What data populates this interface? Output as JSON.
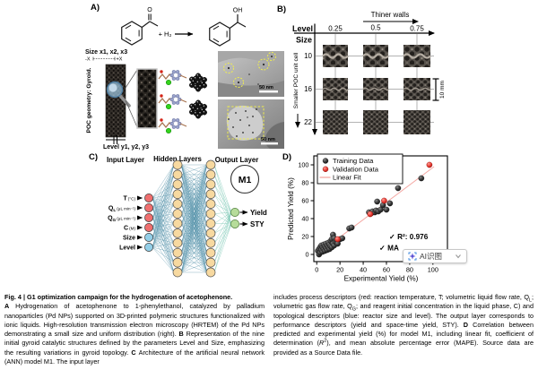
{
  "figure": {
    "panelA": {
      "label": "A)",
      "reaction": {
        "o_label": "O",
        "oh_label": "OH",
        "plus_h2": "+ H₂"
      },
      "size_label": "Size x1, x2, x3",
      "axis_minus": "-X",
      "axis_plus": "+X",
      "poc_label": "POC geometry: Gyroid.",
      "level_label": "Level y1, y2, y3",
      "tem1_scalebar": "50 nm",
      "tem2_scalebar": "50 nm",
      "icons": {
        "magnifier": "magnifier-icon"
      }
    },
    "panelB": {
      "label": "B)",
      "arrow_label": "Thiner walls",
      "level_header": "Level",
      "size_header": "Size",
      "levels": [
        "0.25",
        "0.5",
        "0.75"
      ],
      "sizes": [
        "10",
        "16",
        "22"
      ],
      "side_label": "Smaller POC unit cell",
      "scalebar": "10 mm"
    },
    "panelC": {
      "label": "C)",
      "headers": [
        "Input Layer",
        "Hidden Layers",
        "Output Layer"
      ],
      "model_name": "M1",
      "inputs": [
        {
          "main": "T",
          "sub": "",
          "unit": "(°C)",
          "type": "process"
        },
        {
          "main": "Q",
          "sub": "L",
          "unit": "(μL min⁻¹)",
          "type": "process"
        },
        {
          "main": "Q",
          "sub": "G",
          "unit": "(μL min⁻¹)",
          "type": "process"
        },
        {
          "main": "C",
          "sub": "",
          "unit": "(M)",
          "type": "process"
        },
        {
          "main": "Size",
          "sub": "",
          "unit": "",
          "type": "topological"
        },
        {
          "main": "Level",
          "sub": "",
          "unit": "",
          "type": "topological"
        }
      ],
      "hidden_layers": 2,
      "hidden_nodes_per_layer": 12,
      "outputs": [
        "Yield",
        "STY"
      ],
      "colors": {
        "input_process": "#ef6f6f",
        "input_topological": "#93cfe8",
        "hidden": "#f7d9a0",
        "output": "#b6dc9a",
        "edge_blue": "#1d6e8e",
        "edge_green": "#3fae92"
      }
    },
    "panelD": {
      "label": "D)",
      "annotation_r2": "✓ R²: 0.976",
      "annotation_mape_partial": "✓ MA",
      "overlay_badge": {
        "label": "AI识图",
        "icons": {
          "left": "sparkle-scan-icon",
          "right": "chevron-down-icon"
        }
      }
    }
  },
  "chart_data": {
    "type": "scatter",
    "xlabel": "Experimental Yield (%)",
    "ylabel": "Predicted Yield (%)",
    "xlim": [
      -2.5,
      112.5
    ],
    "ylim": [
      -8,
      110
    ],
    "x_ticks": [
      0,
      20,
      40,
      60,
      80,
      100
    ],
    "y_ticks": [
      0,
      20,
      40,
      60,
      80,
      100
    ],
    "legend_position": "top-left",
    "series": [
      {
        "name": "Training Data",
        "marker": "sphere",
        "color": "#2a2a2a",
        "points": [
          [
            1,
            4
          ],
          [
            2,
            0
          ],
          [
            2,
            6
          ],
          [
            3,
            2
          ],
          [
            3,
            8
          ],
          [
            4,
            5
          ],
          [
            4,
            10
          ],
          [
            5,
            3
          ],
          [
            5,
            8
          ],
          [
            6,
            6
          ],
          [
            6,
            11
          ],
          [
            7,
            4
          ],
          [
            7,
            9
          ],
          [
            8,
            7
          ],
          [
            8,
            12
          ],
          [
            9,
            5
          ],
          [
            9,
            10
          ],
          [
            10,
            8
          ],
          [
            10,
            13
          ],
          [
            11,
            6
          ],
          [
            11,
            11
          ],
          [
            12,
            9
          ],
          [
            12,
            15
          ],
          [
            13,
            8
          ],
          [
            13,
            17
          ],
          [
            14,
            12
          ],
          [
            14,
            22
          ],
          [
            15,
            10
          ],
          [
            15,
            18
          ],
          [
            16,
            14
          ],
          [
            17,
            16
          ],
          [
            18,
            12
          ],
          [
            20,
            17
          ],
          [
            22,
            18
          ],
          [
            28,
            29
          ],
          [
            30,
            30
          ],
          [
            45,
            47
          ],
          [
            47,
            46
          ],
          [
            48,
            48
          ],
          [
            50,
            47
          ],
          [
            51,
            49
          ],
          [
            52,
            59
          ],
          [
            53,
            48
          ],
          [
            55,
            50
          ],
          [
            57,
            55
          ],
          [
            60,
            50
          ],
          [
            63,
            57
          ],
          [
            70,
            74
          ],
          [
            90,
            85
          ]
        ]
      },
      {
        "name": "Validation Data",
        "marker": "sphere",
        "color": "#e03127",
        "points": [
          [
            18,
            17
          ],
          [
            46,
            45
          ],
          [
            58,
            60
          ],
          [
            97,
            100
          ]
        ]
      }
    ],
    "fit": {
      "name": "Linear Fit",
      "color": "#f4a7a2",
      "x": [
        0,
        101
      ],
      "y": [
        0,
        98
      ]
    },
    "stats": {
      "r2": "0.976"
    }
  },
  "caption": {
    "left_title": "Fig. 4 | G1 optimization campaign for the hydrogenation of acetophenone.",
    "left_segments": [
      {
        "t": "A ",
        "b": 1
      },
      {
        "t": "Hydrogenation of acetophenone to 1-phenylethanol, catalyzed by palladium nanoparticles (Pd NPs) supported on 3D-printed polymeric structures functionalized with ionic liquids. High-resolution transmission electron microscopy (HRTEM) of the Pd NPs demonstrating a small size and uniform distribution (right). "
      },
      {
        "t": "B ",
        "b": 1
      },
      {
        "t": "Representation of the nine initial gyroid catalytic structures defined by the parameters Level and Size, emphasizing the resulting variations in gyroid topology. "
      },
      {
        "t": "C ",
        "b": 1
      },
      {
        "t": "Architecture of the artificial neural network (ANN) model M1. The input layer"
      }
    ],
    "right_segments": [
      {
        "t": "includes process descriptors (red: reaction temperature, T; volumetric liquid flow rate, Q"
      },
      {
        "t": "L",
        "sub": 1
      },
      {
        "t": "; volumetric gas flow rate, Q"
      },
      {
        "t": "G",
        "sub": 1
      },
      {
        "t": "; and reagent initial concentration in the liquid phase, C) and topological descriptors (blue: reactor size and level). The output layer corresponds to performance descriptors (yield and space-time yield, STY). "
      },
      {
        "t": "D ",
        "b": 1
      },
      {
        "t": "Correlation between predicted and experimental yield (%) for model M1, including linear fit, coefficient of determination ("
      },
      {
        "t": "R",
        "i": 1
      },
      {
        "t": "2",
        "sup": 1
      },
      {
        "t": "), and mean absolute percentage error (MAPE). Source data are provided as a Source Data file."
      }
    ]
  }
}
